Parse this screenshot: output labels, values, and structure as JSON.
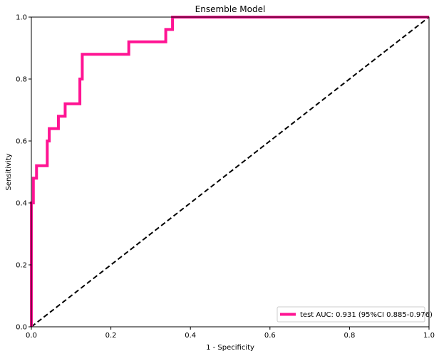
{
  "chart_data": {
    "type": "line",
    "title": "Ensemble Model",
    "xlabel": "1 - Specificity",
    "ylabel": "Sensitivity",
    "xlim": [
      0.0,
      1.0
    ],
    "ylim": [
      0.0,
      1.0
    ],
    "x_ticks": [
      0.0,
      0.2,
      0.4,
      0.6,
      0.8,
      1.0
    ],
    "y_ticks": [
      0.0,
      0.2,
      0.4,
      0.6,
      0.8,
      1.0
    ],
    "x_tick_labels": [
      "0.0",
      "0.2",
      "0.4",
      "0.6",
      "0.8",
      "1.0"
    ],
    "y_tick_labels": [
      "0.0",
      "0.2",
      "0.4",
      "0.6",
      "0.8",
      "1.0"
    ],
    "grid": false,
    "legend_position": "lower right",
    "series": [
      {
        "name": "test AUC: 0.931 (95%CI 0.885-0.976)",
        "color": "#ff1493",
        "style": "solid",
        "x": [
          0.0,
          0.0,
          0.0,
          0.0,
          0.005,
          0.005,
          0.013,
          0.013,
          0.04,
          0.04,
          0.045,
          0.045,
          0.068,
          0.068,
          0.085,
          0.085,
          0.122,
          0.122,
          0.128,
          0.128,
          0.245,
          0.245,
          0.338,
          0.338,
          0.355,
          0.355,
          1.0
        ],
        "y": [
          0.0,
          0.36,
          0.36,
          0.4,
          0.4,
          0.48,
          0.48,
          0.52,
          0.52,
          0.6,
          0.6,
          0.64,
          0.64,
          0.68,
          0.68,
          0.72,
          0.72,
          0.8,
          0.8,
          0.88,
          0.88,
          0.92,
          0.92,
          0.96,
          0.96,
          1.0,
          1.0
        ]
      },
      {
        "name": "chance diagonal",
        "color": "#000000",
        "style": "dashed",
        "x": [
          0.0,
          1.0
        ],
        "y": [
          0.0,
          1.0
        ]
      }
    ]
  }
}
